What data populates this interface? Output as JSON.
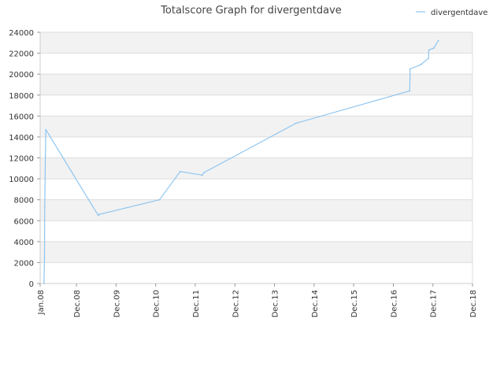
{
  "chart_data": {
    "type": "line",
    "title": "Totalscore Graph for divergentdave",
    "xlabel": "",
    "ylabel": "",
    "ylim": [
      0,
      24000
    ],
    "xlim": [
      "2008-01",
      "2018-12"
    ],
    "y_ticks": [
      0,
      2000,
      4000,
      6000,
      8000,
      10000,
      12000,
      14000,
      16000,
      18000,
      20000,
      22000,
      24000
    ],
    "x_ticks": [
      {
        "label": "Jan.08",
        "date": "2008-01"
      },
      {
        "label": "Dec.08",
        "date": "2008-12"
      },
      {
        "label": "Dec.09",
        "date": "2009-12"
      },
      {
        "label": "Dec.10",
        "date": "2010-12"
      },
      {
        "label": "Dec.11",
        "date": "2011-12"
      },
      {
        "label": "Dec.12",
        "date": "2012-12"
      },
      {
        "label": "Dec.13",
        "date": "2013-12"
      },
      {
        "label": "Dec.14",
        "date": "2014-12"
      },
      {
        "label": "Dec.15",
        "date": "2015-12"
      },
      {
        "label": "Dec.16",
        "date": "2016-12"
      },
      {
        "label": "Dec.17",
        "date": "2017-12"
      },
      {
        "label": "Dec.18",
        "date": "2018-12"
      }
    ],
    "grid": true,
    "legend_position": "top-right",
    "series": [
      {
        "name": "divergentdave",
        "color": "#8ec5f0",
        "points": [
          {
            "x": "2008-02-05",
            "y": 0
          },
          {
            "x": "2008-02-10",
            "y": 2500
          },
          {
            "x": "2008-02-12",
            "y": 7300
          },
          {
            "x": "2008-02-18",
            "y": 12200
          },
          {
            "x": "2008-02-22",
            "y": 14700
          },
          {
            "x": "2009-06-20",
            "y": 6500
          },
          {
            "x": "2009-06-28",
            "y": 6600
          },
          {
            "x": "2011-01-05",
            "y": 8000
          },
          {
            "x": "2011-07-15",
            "y": 10700
          },
          {
            "x": "2012-02-05",
            "y": 10350
          },
          {
            "x": "2012-02-20",
            "y": 10600
          },
          {
            "x": "2014-06-15",
            "y": 15300
          },
          {
            "x": "2017-05-01",
            "y": 18400
          },
          {
            "x": "2017-05-05",
            "y": 20500
          },
          {
            "x": "2017-08-10",
            "y": 20900
          },
          {
            "x": "2017-10-20",
            "y": 21500
          },
          {
            "x": "2017-10-25",
            "y": 22300
          },
          {
            "x": "2017-12-10",
            "y": 22500
          },
          {
            "x": "2018-01-20",
            "y": 23200
          }
        ]
      }
    ]
  }
}
